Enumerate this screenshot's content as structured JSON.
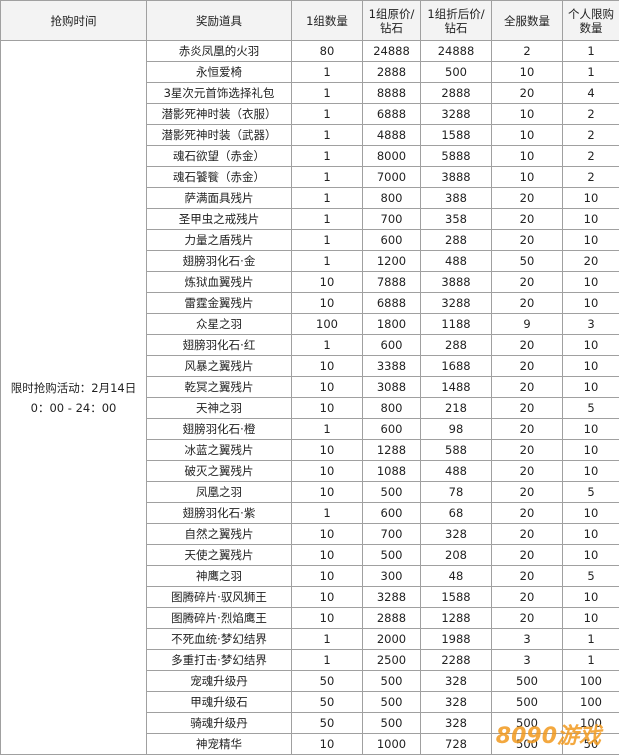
{
  "table": {
    "headers": [
      "抢购时间",
      "奖励道具",
      "1组数量",
      "1组原价/\n钻石",
      "1组折后价/\n钻石",
      "全服数量",
      "个人限购\n数量"
    ],
    "time": "限时抢购活动：2月14日\n0：00 - 24：00",
    "rows": [
      [
        "赤炎凤凰的火羽",
        80,
        24888,
        24888,
        2,
        1
      ],
      [
        "永恒爱椅",
        1,
        2888,
        500,
        10,
        1
      ],
      [
        "3星次元首饰选择礼包",
        1,
        8888,
        2888,
        20,
        4
      ],
      [
        "潜影死神时装（衣服）",
        1,
        6888,
        3288,
        10,
        2
      ],
      [
        "潜影死神时装（武器）",
        1,
        4888,
        1588,
        10,
        2
      ],
      [
        "魂石欲望（赤金）",
        1,
        8000,
        5888,
        10,
        2
      ],
      [
        "魂石饕餮（赤金）",
        1,
        7000,
        3888,
        10,
        2
      ],
      [
        "萨满面具残片",
        1,
        800,
        388,
        20,
        10
      ],
      [
        "圣甲虫之戒残片",
        1,
        700,
        358,
        20,
        10
      ],
      [
        "力量之盾残片",
        1,
        600,
        288,
        20,
        10
      ],
      [
        "翅膀羽化石·金",
        1,
        1200,
        488,
        50,
        20
      ],
      [
        "炼狱血翼残片",
        10,
        7888,
        3888,
        20,
        10
      ],
      [
        "雷霆金翼残片",
        10,
        6888,
        3288,
        20,
        10
      ],
      [
        "众星之羽",
        100,
        1800,
        1188,
        9,
        3
      ],
      [
        "翅膀羽化石·红",
        1,
        600,
        288,
        20,
        10
      ],
      [
        "风暴之翼残片",
        10,
        3388,
        1688,
        20,
        10
      ],
      [
        "乾冥之翼残片",
        10,
        3088,
        1488,
        20,
        10
      ],
      [
        "天神之羽",
        10,
        800,
        218,
        20,
        5
      ],
      [
        "翅膀羽化石·橙",
        1,
        600,
        98,
        20,
        10
      ],
      [
        "冰蓝之翼残片",
        10,
        1288,
        588,
        20,
        10
      ],
      [
        "破灭之翼残片",
        10,
        1088,
        488,
        20,
        10
      ],
      [
        "凤凰之羽",
        10,
        500,
        78,
        20,
        5
      ],
      [
        "翅膀羽化石·紫",
        1,
        600,
        68,
        20,
        10
      ],
      [
        "自然之翼残片",
        10,
        700,
        328,
        20,
        10
      ],
      [
        "天使之翼残片",
        10,
        500,
        208,
        20,
        10
      ],
      [
        "神鹰之羽",
        10,
        300,
        48,
        20,
        5
      ],
      [
        "图腾碎片·驭风狮王",
        10,
        3288,
        1588,
        20,
        10
      ],
      [
        "图腾碎片·烈焰鹰王",
        10,
        2888,
        1288,
        20,
        10
      ],
      [
        "不死血统·梦幻结界",
        1,
        2000,
        1988,
        3,
        1
      ],
      [
        "多重打击·梦幻结界",
        1,
        2500,
        2288,
        3,
        1
      ],
      [
        "宠魂升级丹",
        50,
        500,
        328,
        500,
        100
      ],
      [
        "甲魂升级石",
        50,
        500,
        328,
        500,
        100
      ],
      [
        "骑魂升级丹",
        50,
        500,
        328,
        500,
        100
      ],
      [
        "神宠精华",
        10,
        1000,
        728,
        500,
        50
      ]
    ]
  },
  "watermark": "8090游戏"
}
